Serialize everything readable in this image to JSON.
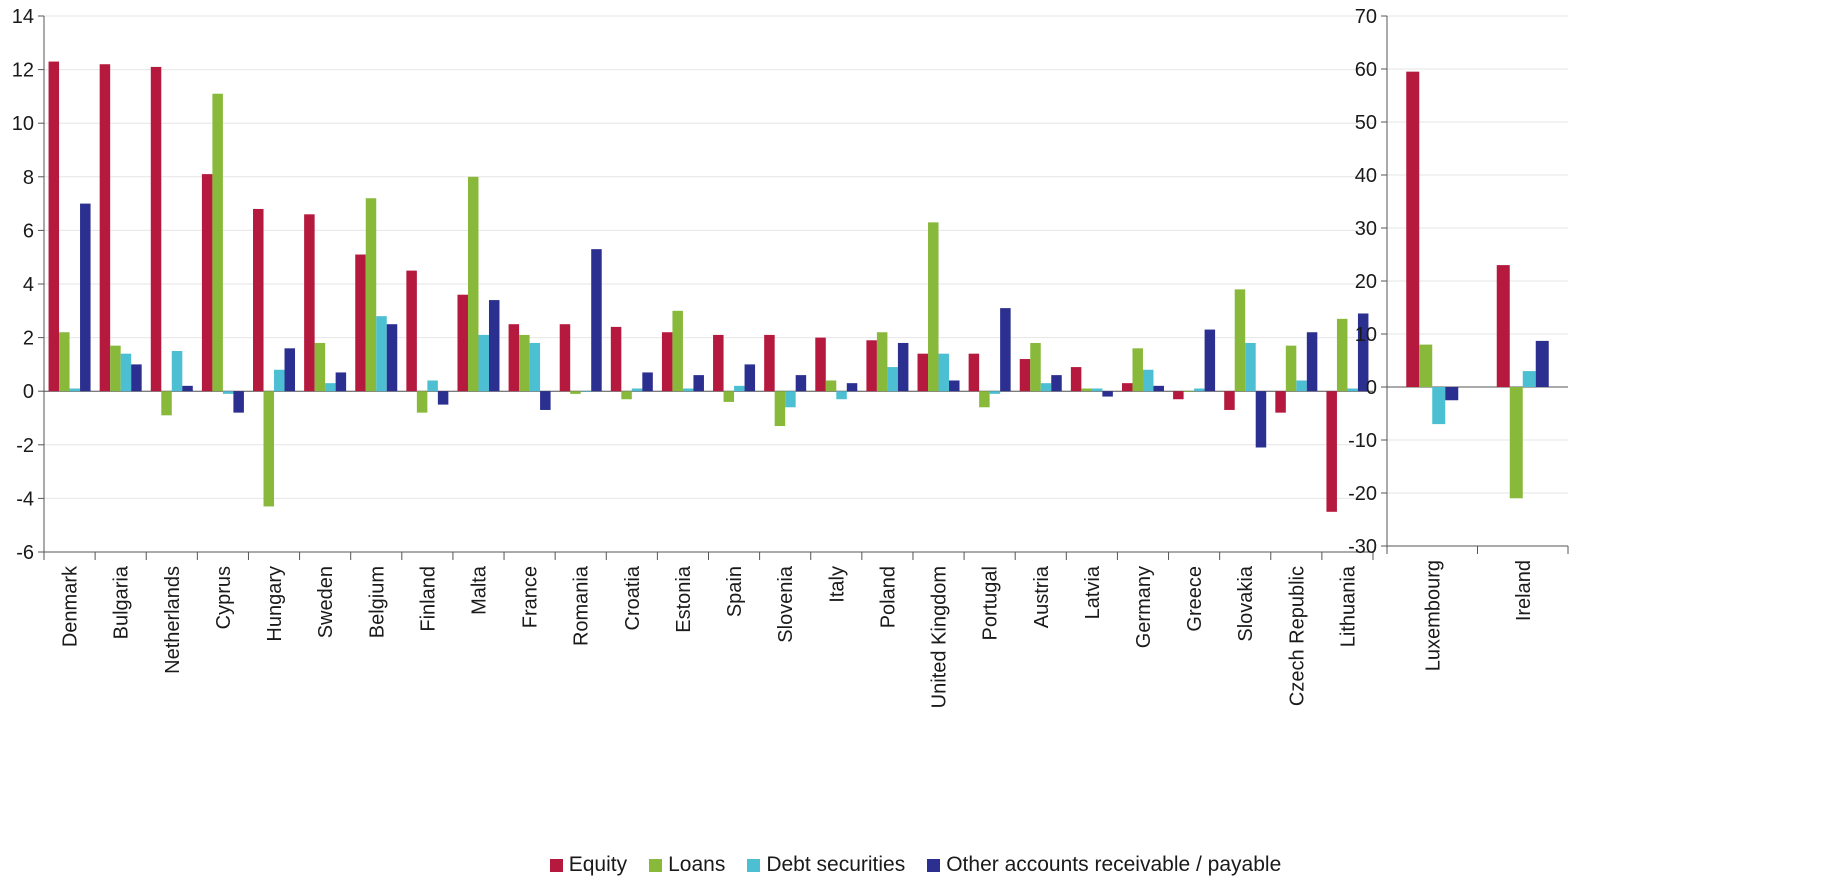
{
  "chart_data": [
    {
      "type": "bar",
      "categories": [
        "Denmark",
        "Bulgaria",
        "Netherlands",
        "Cyprus",
        "Hungary",
        "Sweden",
        "Belgium",
        "Finland",
        "Malta",
        "France",
        "Romania",
        "Croatia",
        "Estonia",
        "Spain",
        "Slovenia",
        "Italy",
        "Poland",
        "United Kingdom",
        "Portugal",
        "Austria",
        "Latvia",
        "Germany",
        "Greece",
        "Slovakia",
        "Czech Republic",
        "Lithuania"
      ],
      "ylim": [
        -6,
        14
      ],
      "yticks": [
        -6,
        -4,
        -2,
        0,
        2,
        4,
        6,
        8,
        10,
        12,
        14
      ],
      "grid": true,
      "series": [
        {
          "name": "Equity",
          "values": [
            12.3,
            12.2,
            12.1,
            8.1,
            6.8,
            6.6,
            5.1,
            4.5,
            3.6,
            2.5,
            2.5,
            2.4,
            2.2,
            2.1,
            2.1,
            2.0,
            1.9,
            1.4,
            1.4,
            1.2,
            0.9,
            0.3,
            -0.3,
            -0.7,
            -0.8,
            -4.5
          ]
        },
        {
          "name": "Loans",
          "values": [
            2.2,
            1.7,
            -0.9,
            11.1,
            -4.3,
            1.8,
            7.2,
            -0.8,
            8.0,
            2.1,
            -0.1,
            -0.3,
            3.0,
            -0.4,
            -1.3,
            0.4,
            2.2,
            6.3,
            -0.6,
            1.8,
            0.1,
            1.6,
            0.0,
            3.8,
            1.7,
            2.7
          ]
        },
        {
          "name": "Debt securities",
          "values": [
            0.1,
            1.4,
            1.5,
            -0.1,
            0.8,
            0.3,
            2.8,
            0.4,
            2.1,
            1.8,
            0.0,
            0.1,
            0.1,
            0.2,
            -0.6,
            -0.3,
            0.9,
            1.4,
            -0.1,
            0.3,
            0.1,
            0.8,
            0.1,
            1.8,
            0.4,
            0.1
          ]
        },
        {
          "name": "Other accounts receivable / payable",
          "values": [
            7.0,
            1.0,
            0.2,
            -0.8,
            1.6,
            0.7,
            2.5,
            -0.5,
            3.4,
            -0.7,
            5.3,
            0.7,
            0.6,
            1.0,
            0.6,
            0.3,
            1.8,
            0.4,
            3.1,
            0.6,
            -0.2,
            0.2,
            2.3,
            -2.1,
            2.2,
            2.9
          ]
        }
      ]
    },
    {
      "type": "bar",
      "categories": [
        "Luxembourg",
        "Ireland"
      ],
      "ylim": [
        -30,
        70
      ],
      "yticks": [
        -30,
        -20,
        -10,
        0,
        10,
        20,
        30,
        40,
        50,
        60,
        70
      ],
      "grid": true,
      "series": [
        {
          "name": "Equity",
          "values": [
            59.5,
            23.0
          ]
        },
        {
          "name": "Loans",
          "values": [
            8.0,
            -21.0
          ]
        },
        {
          "name": "Debt securities",
          "values": [
            -7.0,
            3.0
          ]
        },
        {
          "name": "Other accounts receivable / payable",
          "values": [
            -2.5,
            8.7
          ]
        }
      ]
    }
  ],
  "colors": [
    "#b5193d",
    "#89b93b",
    "#4dbfd3",
    "#2b2f8f"
  ],
  "legend": {
    "placement": "bottom",
    "items": [
      {
        "label": "Equity"
      },
      {
        "label": "Loans"
      },
      {
        "label": "Debt securities"
      },
      {
        "label": "Other accounts receivable / payable"
      }
    ]
  }
}
